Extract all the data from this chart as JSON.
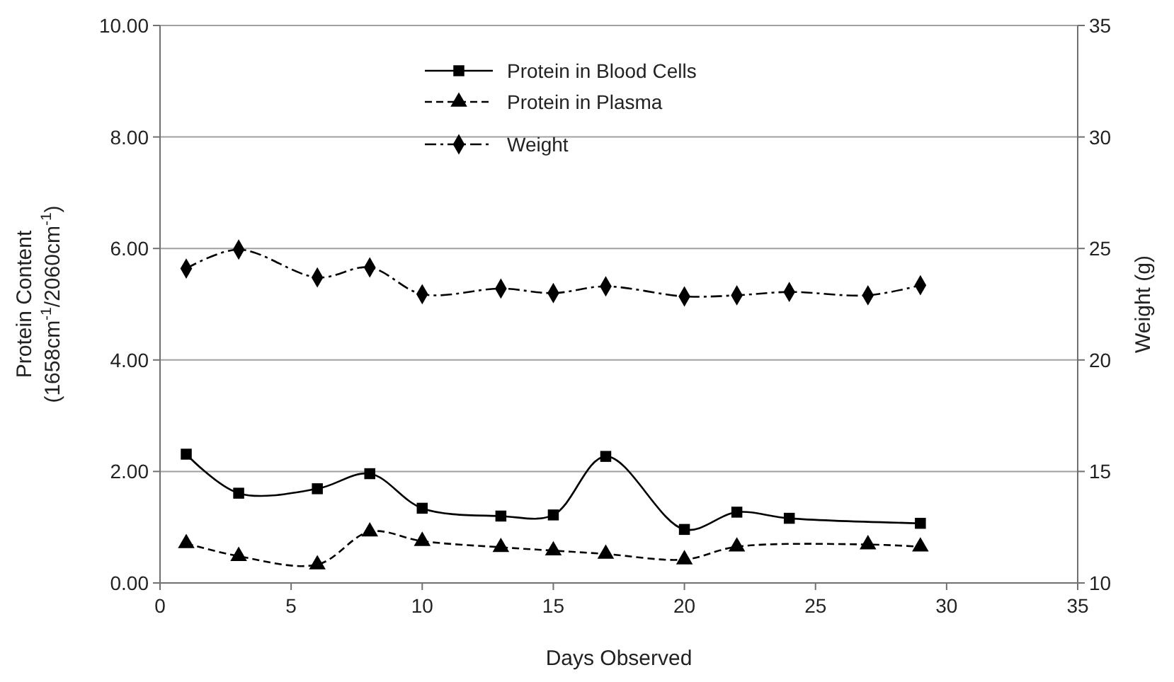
{
  "chart_data": {
    "type": "line",
    "xlabel": "Days Observed",
    "ylabel": "Protein Content\n(1658cm$^{-1}$/2060cm$^{-1}$)",
    "y2label": "Weight (g)",
    "xlim": [
      0,
      35
    ],
    "xticks": [
      0,
      5,
      10,
      15,
      20,
      25,
      30,
      35
    ],
    "ylim": [
      0,
      10
    ],
    "yticks": [
      {
        "value": 0,
        "label": "0.00"
      },
      {
        "value": 2,
        "label": "2.00"
      },
      {
        "value": 4,
        "label": "4.00"
      },
      {
        "value": 6,
        "label": "6.00"
      },
      {
        "value": 8,
        "label": "8.00"
      },
      {
        "value": 10,
        "label": "10.00"
      }
    ],
    "y2lim": [
      10,
      35
    ],
    "y2ticks": [
      10,
      15,
      20,
      25,
      30,
      35
    ],
    "grid": "y",
    "legend": "top",
    "series": [
      {
        "name": "Protein in Blood Cells",
        "color": "#000000",
        "marker": "square",
        "line_style": "solid",
        "x": [
          1,
          3,
          6,
          8,
          10,
          13,
          15,
          17,
          20,
          22,
          24,
          29
        ],
        "values": [
          2.31,
          1.61,
          1.69,
          1.96,
          1.34,
          1.2,
          1.22,
          2.27,
          0.96,
          1.27,
          1.16,
          1.07
        ]
      },
      {
        "name": "Protein in Plasma",
        "color": "#000000",
        "marker": "triangle",
        "line_style": "dashed",
        "x": [
          1,
          3,
          6,
          8,
          10,
          13,
          15,
          17,
          20,
          22,
          27,
          29
        ],
        "values": [
          0.71,
          0.48,
          0.33,
          0.92,
          0.75,
          0.64,
          0.58,
          0.52,
          0.42,
          0.65,
          0.69,
          0.65
        ]
      },
      {
        "name": "Weight",
        "color": "#000000",
        "marker": "diamond",
        "line_style": "dashdot",
        "axis": "y2",
        "x": [
          1,
          3,
          6,
          8,
          10,
          13,
          15,
          17,
          20,
          22,
          24,
          27,
          29
        ],
        "values": [
          24.1,
          24.95,
          23.7,
          24.15,
          22.95,
          23.2,
          23.0,
          23.3,
          22.85,
          22.9,
          23.05,
          22.9,
          23.35
        ]
      }
    ]
  }
}
